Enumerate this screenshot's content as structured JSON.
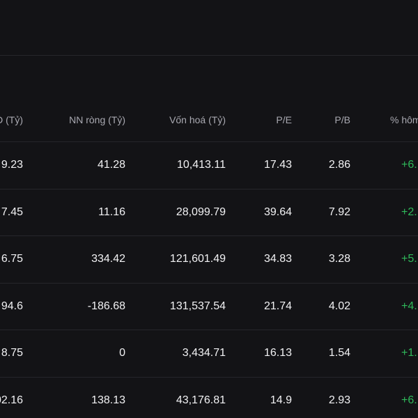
{
  "table": {
    "headers": {
      "col0": "D (Tỷ)",
      "col1": "NN ròng (Tỷ)",
      "col2": "Vốn hoá (Tỷ)",
      "col3": "P/E",
      "col4": "P/B",
      "col5": "% hôm"
    },
    "rows": [
      {
        "c0": "9.23",
        "c1": "41.28",
        "c2": "10,413.11",
        "c3": "17.43",
        "c4": "2.86",
        "c5": "+6."
      },
      {
        "c0": "7.45",
        "c1": "11.16",
        "c2": "28,099.79",
        "c3": "39.64",
        "c4": "7.92",
        "c5": "+2."
      },
      {
        "c0": "6.75",
        "c1": "334.42",
        "c2": "121,601.49",
        "c3": "34.83",
        "c4": "3.28",
        "c5": "+5."
      },
      {
        "c0": "94.6",
        "c1": "-186.68",
        "c2": "131,537.54",
        "c3": "21.74",
        "c4": "4.02",
        "c5": "+4."
      },
      {
        "c0": "8.75",
        "c1": "0",
        "c2": "3,434.71",
        "c3": "16.13",
        "c4": "1.54",
        "c5": "+1."
      },
      {
        "c0": "02.16",
        "c1": "138.13",
        "c2": "43,176.81",
        "c3": "14.9",
        "c4": "2.93",
        "c5": "+6."
      }
    ]
  },
  "colors": {
    "background": "#131316",
    "positive": "#2fb95a",
    "header_text": "#a9a9b1",
    "divider": "#26262b"
  }
}
